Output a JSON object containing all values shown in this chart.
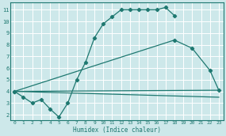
{
  "bg_color": "#cde8ea",
  "grid_color": "#ffffff",
  "line_color": "#1e7870",
  "xlabel": "Humidex (Indice chaleur)",
  "xlim": [
    -0.5,
    23.5
  ],
  "ylim": [
    1.5,
    11.6
  ],
  "yticks": [
    2,
    3,
    4,
    5,
    6,
    7,
    8,
    9,
    10,
    11
  ],
  "xticks": [
    0,
    1,
    2,
    3,
    4,
    5,
    6,
    7,
    8,
    9,
    10,
    11,
    12,
    13,
    14,
    15,
    16,
    17,
    18,
    19,
    20,
    21,
    22,
    23
  ],
  "lines": [
    {
      "x": [
        0,
        1,
        2,
        3,
        4,
        5,
        6,
        7,
        8,
        9,
        10,
        11,
        12,
        13,
        14,
        15,
        16,
        17,
        18
      ],
      "y": [
        4.0,
        3.5,
        3.0,
        3.3,
        2.5,
        1.8,
        3.0,
        5.0,
        6.5,
        8.6,
        9.8,
        10.4,
        11.0,
        11.0,
        11.0,
        11.0,
        11.0,
        11.2,
        10.5
      ],
      "has_markers": true
    },
    {
      "x": [
        0,
        18,
        20,
        22,
        23
      ],
      "y": [
        4.0,
        8.4,
        7.7,
        5.8,
        4.1
      ],
      "has_markers": true
    },
    {
      "x": [
        0,
        23
      ],
      "y": [
        4.0,
        4.1
      ],
      "has_markers": false
    },
    {
      "x": [
        0,
        23
      ],
      "y": [
        4.0,
        3.5
      ],
      "has_markers": false
    }
  ]
}
